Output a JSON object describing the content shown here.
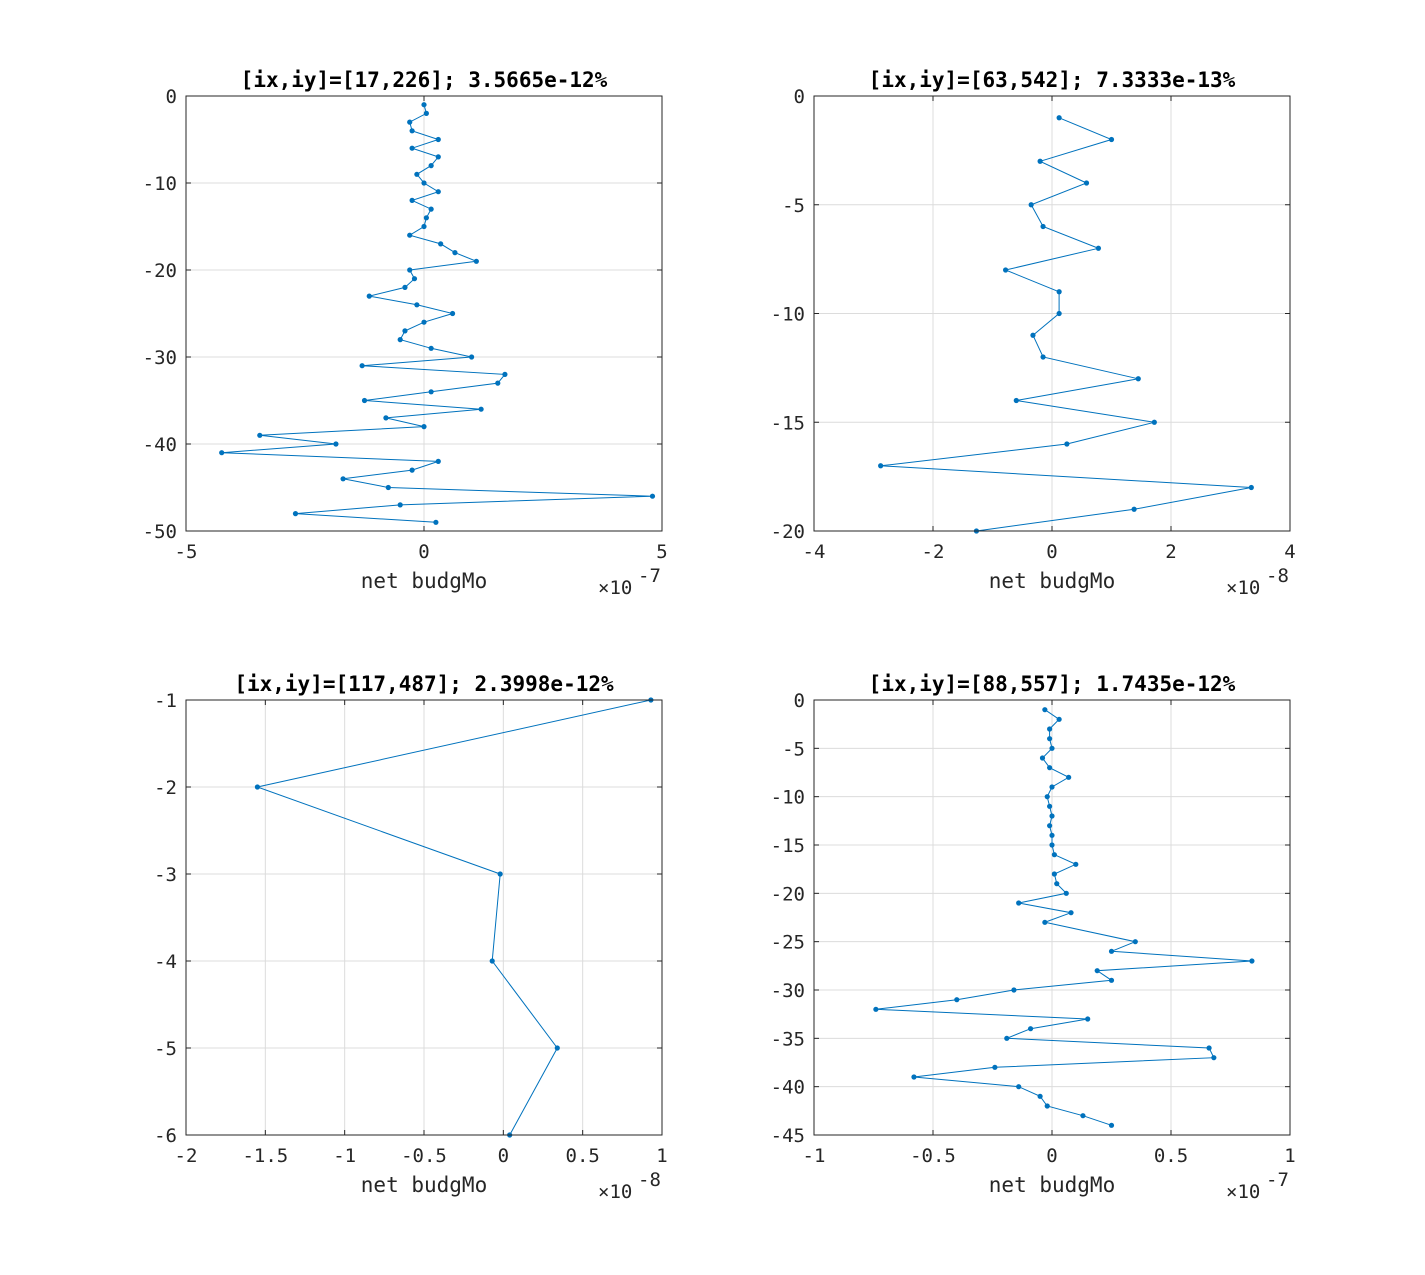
{
  "chart_data": [
    {
      "type": "line",
      "title": "[ix,iy]=[17,226]; 3.5665e-12%",
      "xlabel": "net budgMo",
      "ylabel": "",
      "x_exponent_base": "×10",
      "x_exponent_power": "-7",
      "xlim": [
        -5,
        5
      ],
      "ylim": [
        -50,
        0
      ],
      "x_ticks": [
        "-5",
        "0",
        "5"
      ],
      "x_tick_values": [
        -5,
        0,
        5
      ],
      "y_ticks": [
        "0",
        "-10",
        "-20",
        "-30",
        "-40",
        "-50"
      ],
      "y_tick_values": [
        0,
        -10,
        -20,
        -30,
        -40,
        -50
      ],
      "grid": true,
      "series": [
        {
          "color": "#0072BD",
          "x": [
            0.0,
            0.05,
            -0.3,
            -0.25,
            0.3,
            -0.25,
            0.3,
            0.15,
            -0.15,
            0.0,
            0.3,
            -0.25,
            0.15,
            0.05,
            0.0,
            -0.3,
            0.35,
            0.65,
            1.1,
            -0.3,
            -0.2,
            -0.4,
            -1.15,
            -0.15,
            0.6,
            0.0,
            -0.4,
            -0.5,
            0.15,
            1.0,
            -1.3,
            1.7,
            1.55,
            0.15,
            -1.25,
            1.2,
            -0.8,
            0.0,
            -3.45,
            -1.85,
            -4.25,
            0.3,
            -0.25,
            -1.7,
            -0.75,
            4.8,
            -0.5,
            -2.7,
            0.25
          ],
          "y": [
            -1,
            -2,
            -3,
            -4,
            -5,
            -6,
            -7,
            -8,
            -9,
            -10,
            -11,
            -12,
            -13,
            -14,
            -15,
            -16,
            -17,
            -18,
            -19,
            -20,
            -21,
            -22,
            -23,
            -24,
            -25,
            -26,
            -27,
            -28,
            -29,
            -30,
            -31,
            -32,
            -33,
            -34,
            -35,
            -36,
            -37,
            -38,
            -39,
            -40,
            -41,
            -42,
            -43,
            -44,
            -45,
            -46,
            -47,
            -48,
            -49
          ]
        }
      ]
    },
    {
      "type": "line",
      "title": "[ix,iy]=[63,542]; 7.3333e-13%",
      "xlabel": "net budgMo",
      "ylabel": "",
      "x_exponent_base": "×10",
      "x_exponent_power": "-8",
      "xlim": [
        -4,
        4
      ],
      "ylim": [
        -20,
        0
      ],
      "x_ticks": [
        "-4",
        "-2",
        "0",
        "2",
        "4"
      ],
      "x_tick_values": [
        -4,
        -2,
        0,
        2,
        4
      ],
      "y_ticks": [
        "0",
        "-5",
        "-10",
        "-15",
        "-20"
      ],
      "y_tick_values": [
        0,
        -5,
        -10,
        -15,
        -20
      ],
      "grid": true,
      "series": [
        {
          "color": "#0072BD",
          "x": [
            0.12,
            1.0,
            -0.2,
            0.58,
            -0.35,
            -0.15,
            0.78,
            -0.78,
            0.12,
            0.12,
            -0.32,
            -0.15,
            1.45,
            -0.6,
            1.72,
            0.25,
            -2.88,
            3.35,
            1.38,
            -1.27
          ],
          "y": [
            -1,
            -2,
            -3,
            -4,
            -5,
            -6,
            -7,
            -8,
            -9,
            -10,
            -11,
            -12,
            -13,
            -14,
            -15,
            -16,
            -17,
            -18,
            -19,
            -20
          ]
        }
      ]
    },
    {
      "type": "line",
      "title": "[ix,iy]=[117,487]; 2.3998e-12%",
      "xlabel": "net budgMo",
      "ylabel": "",
      "x_exponent_base": "×10",
      "x_exponent_power": "-8",
      "xlim": [
        -2,
        1
      ],
      "ylim": [
        -6,
        -1
      ],
      "x_ticks": [
        "-2",
        "-1.5",
        "-1",
        "-0.5",
        "0",
        "0.5",
        "1"
      ],
      "x_tick_values": [
        -2,
        -1.5,
        -1,
        -0.5,
        0,
        0.5,
        1
      ],
      "y_ticks": [
        "-1",
        "-2",
        "-3",
        "-4",
        "-5",
        "-6"
      ],
      "y_tick_values": [
        -1,
        -2,
        -3,
        -4,
        -5,
        -6
      ],
      "grid": true,
      "series": [
        {
          "color": "#0072BD",
          "x": [
            0.93,
            -1.55,
            -0.02,
            -0.07,
            0.34,
            0.04
          ],
          "y": [
            -1,
            -2,
            -3,
            -4,
            -5,
            -6
          ]
        }
      ]
    },
    {
      "type": "line",
      "title": "[ix,iy]=[88,557]; 1.7435e-12%",
      "xlabel": "net budgMo",
      "ylabel": "",
      "x_exponent_base": "×10",
      "x_exponent_power": "-7",
      "xlim": [
        -1,
        1
      ],
      "ylim": [
        -45,
        0
      ],
      "x_ticks": [
        "-1",
        "-0.5",
        "0",
        "0.5",
        "1"
      ],
      "x_tick_values": [
        -1,
        -0.5,
        0,
        0.5,
        1
      ],
      "y_ticks": [
        "0",
        "-5",
        "-10",
        "-15",
        "-20",
        "-25",
        "-30",
        "-35",
        "-40",
        "-45"
      ],
      "y_tick_values": [
        0,
        -5,
        -10,
        -15,
        -20,
        -25,
        -30,
        -35,
        -40,
        -45
      ],
      "grid": true,
      "series": [
        {
          "color": "#0072BD",
          "x": [
            -0.03,
            0.03,
            -0.01,
            -0.01,
            0.0,
            -0.04,
            -0.01,
            0.07,
            0.0,
            -0.02,
            -0.01,
            0.0,
            -0.01,
            0.0,
            0.0,
            0.01,
            0.1,
            0.01,
            0.02,
            0.06,
            -0.14,
            0.08,
            -0.03,
            0.35,
            0.25,
            0.84,
            0.19,
            0.25,
            -0.16,
            -0.4,
            -0.74,
            0.15,
            -0.09,
            -0.19,
            0.66,
            0.68,
            -0.24,
            -0.58,
            -0.14,
            -0.05,
            -0.02,
            0.13,
            0.25
          ],
          "y": [
            -1,
            -2,
            -3,
            -4,
            -5,
            -6,
            -7,
            -8,
            -9,
            -10,
            -11,
            -12,
            -13,
            -14,
            -15,
            -16,
            -17,
            -18,
            -19,
            -20,
            -21,
            -22,
            -23,
            -25,
            -26,
            -27,
            -28,
            -29,
            -30,
            -31,
            -32,
            -33,
            -34,
            -35,
            -36,
            -37,
            -38,
            -39,
            -40,
            -41,
            -42,
            -43,
            -44
          ]
        }
      ]
    }
  ]
}
